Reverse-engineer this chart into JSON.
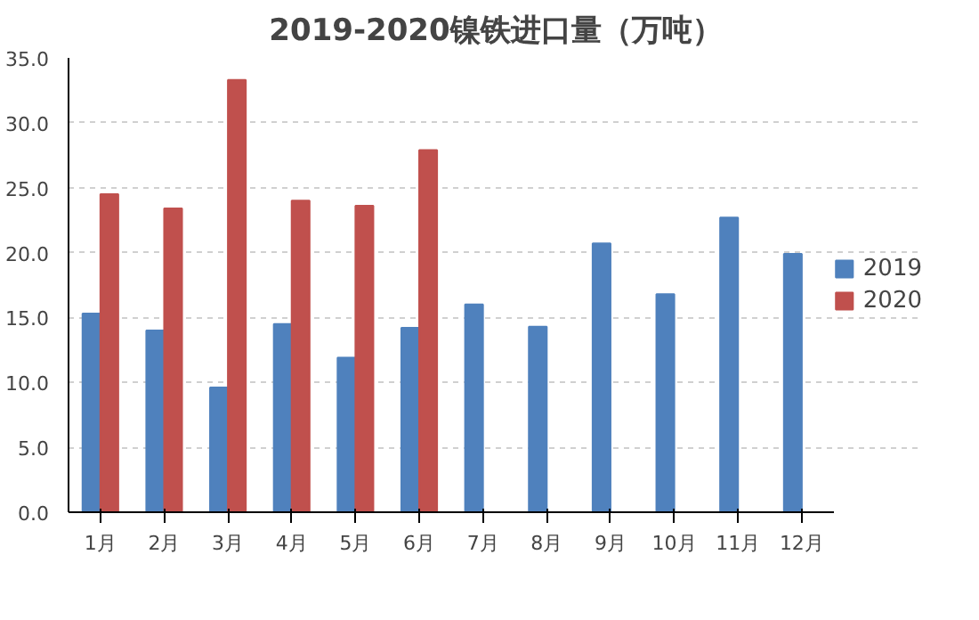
{
  "chart_data": {
    "type": "bar",
    "title": "2019-2020镍铁进口量（万吨）",
    "categories": [
      "1月",
      "2月",
      "3月",
      "4月",
      "5月",
      "6月",
      "7月",
      "8月",
      "9月",
      "10月",
      "11月",
      "12月"
    ],
    "series": [
      {
        "name": "2019",
        "color": "#4f81bd",
        "values": [
          15.3,
          14.0,
          9.6,
          14.5,
          11.9,
          14.2,
          16.0,
          14.3,
          20.7,
          16.8,
          22.7,
          19.9
        ]
      },
      {
        "name": "2020",
        "color": "#c0504d",
        "values": [
          24.5,
          23.4,
          33.3,
          24.0,
          23.6,
          27.9,
          null,
          null,
          null,
          null,
          null,
          null
        ]
      }
    ],
    "ylim": [
      0,
      35
    ],
    "yticks": [
      {
        "value": 0,
        "label": "0.0"
      },
      {
        "value": 5,
        "label": "5.0"
      },
      {
        "value": 10,
        "label": "10.0"
      },
      {
        "value": 15,
        "label": "15.0"
      },
      {
        "value": 20,
        "label": "20.0"
      },
      {
        "value": 25,
        "label": "25.0"
      },
      {
        "value": 30,
        "label": "30.0"
      },
      {
        "value": 35,
        "label": "35.0"
      }
    ],
    "grid": "y",
    "legend": "right"
  }
}
